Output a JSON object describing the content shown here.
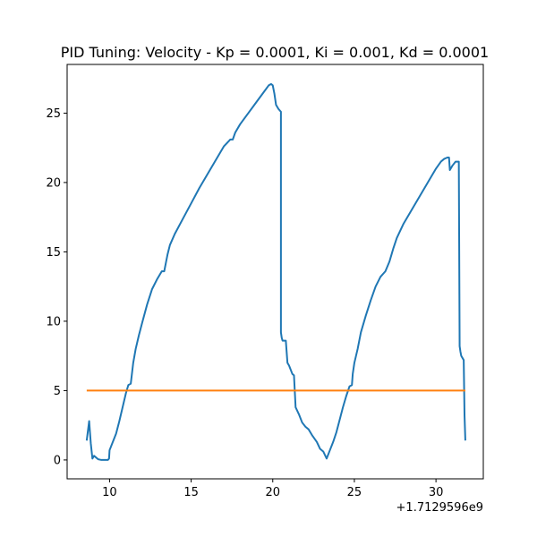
{
  "chart_data": {
    "type": "line",
    "title": "PID Tuning: Velocity - Kp = 0.0001, Ki = 0.001, Kd = 0.0001",
    "xlabel": "",
    "ylabel": "",
    "x_offset_label": "+1.7129596e9",
    "xlim": [
      7.4,
      32.9
    ],
    "ylim": [
      -1.36,
      28.51
    ],
    "x_ticks": [
      10,
      15,
      20,
      25,
      30
    ],
    "y_ticks": [
      0,
      5,
      10,
      15,
      20,
      25
    ],
    "grid": false,
    "legend": "none",
    "series": [
      {
        "color": "#1f77b4",
        "x": [
          8.6,
          8.75,
          8.85,
          8.95,
          9.05,
          9.15,
          9.3,
          9.5,
          9.7,
          9.9,
          9.97,
          10.0,
          10.2,
          10.4,
          10.6,
          10.8,
          11.0,
          11.15,
          11.3,
          11.35,
          11.45,
          11.6,
          11.8,
          12.0,
          12.3,
          12.6,
          12.9,
          13.2,
          13.35,
          13.45,
          13.55,
          13.7,
          14.0,
          14.5,
          15.0,
          15.5,
          16.0,
          16.5,
          17.0,
          17.4,
          17.55,
          17.7,
          18.0,
          18.5,
          19.0,
          19.5,
          19.75,
          19.9,
          20.0,
          20.1,
          20.2,
          20.35,
          20.5,
          20.5,
          20.55,
          20.6,
          20.8,
          20.9,
          21.0,
          21.2,
          21.3,
          21.4,
          21.6,
          21.8,
          22.0,
          22.2,
          22.4,
          22.7,
          22.9,
          23.1,
          23.3,
          23.4,
          23.5,
          23.7,
          23.9,
          24.1,
          24.3,
          24.5,
          24.7,
          24.85,
          24.9,
          25.0,
          25.1,
          25.2,
          25.4,
          25.7,
          26.0,
          26.3,
          26.6,
          26.9,
          27.15,
          27.3,
          27.4,
          27.6,
          28.0,
          28.5,
          29.0,
          29.5,
          30.0,
          30.3,
          30.5,
          30.7,
          30.8,
          30.85,
          31.0,
          31.2,
          31.4,
          31.45,
          31.5,
          31.55,
          31.7,
          31.75,
          31.8
        ],
        "y": [
          1.4,
          2.8,
          1.2,
          0.1,
          0.3,
          0.2,
          0.05,
          0.0,
          0.0,
          0.0,
          0.1,
          0.7,
          1.3,
          1.9,
          2.8,
          3.8,
          4.8,
          5.4,
          5.5,
          6.0,
          7.0,
          8.0,
          9.0,
          9.9,
          11.2,
          12.3,
          13.0,
          13.6,
          13.6,
          14.2,
          14.8,
          15.5,
          16.3,
          17.4,
          18.5,
          19.6,
          20.6,
          21.6,
          22.6,
          23.1,
          23.1,
          23.6,
          24.2,
          25.0,
          25.8,
          26.6,
          27.0,
          27.1,
          27.0,
          26.4,
          25.6,
          25.3,
          25.1,
          9.2,
          8.8,
          8.6,
          8.6,
          7.0,
          6.8,
          6.2,
          6.1,
          3.8,
          3.3,
          2.7,
          2.4,
          2.2,
          1.8,
          1.3,
          0.8,
          0.6,
          0.1,
          0.4,
          0.7,
          1.3,
          2.0,
          2.9,
          3.8,
          4.6,
          5.3,
          5.4,
          6.2,
          7.0,
          7.5,
          8.0,
          9.2,
          10.4,
          11.5,
          12.5,
          13.2,
          13.6,
          14.3,
          14.9,
          15.3,
          16.0,
          17.0,
          18.0,
          19.0,
          20.0,
          21.0,
          21.5,
          21.7,
          21.8,
          21.8,
          20.9,
          21.2,
          21.5,
          21.5,
          8.2,
          7.8,
          7.5,
          7.2,
          3.2,
          1.4
        ],
        "style": "solid"
      },
      {
        "color": "#ff7f0e",
        "x": [
          8.6,
          31.8
        ],
        "y": [
          5.0,
          5.0
        ],
        "style": "solid"
      }
    ]
  }
}
